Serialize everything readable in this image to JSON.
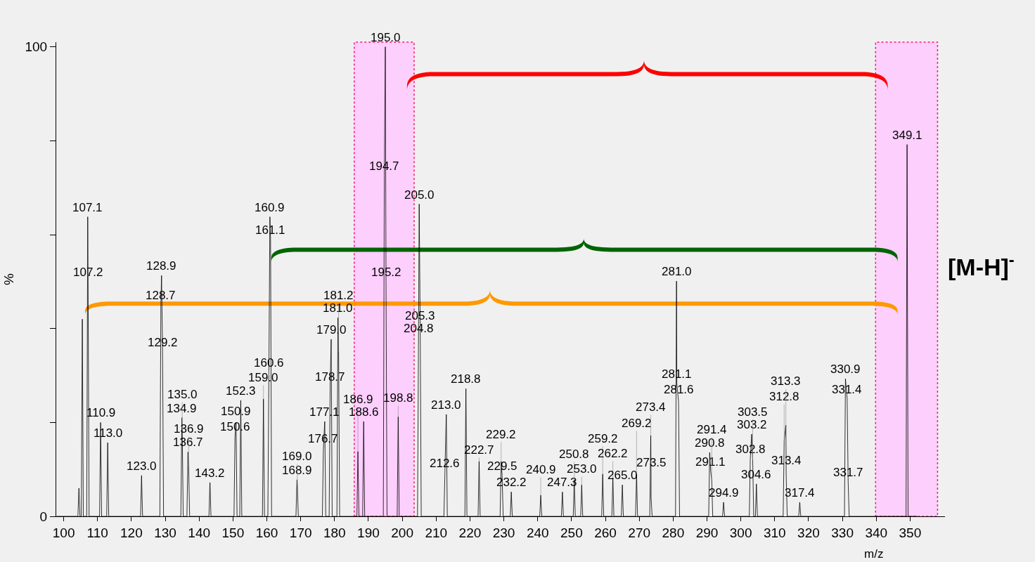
{
  "chart_data": {
    "type": "line",
    "xlabel": "m/z",
    "ylabel": "%",
    "xlim": [
      97.8,
      360.3
    ],
    "ylim": [
      0,
      101
    ],
    "xticks": [
      100,
      110,
      120,
      130,
      140,
      150,
      160,
      170,
      180,
      190,
      200,
      210,
      220,
      230,
      240,
      250,
      260,
      270,
      280,
      290,
      300,
      310,
      320,
      330,
      340,
      350
    ],
    "yticks": [
      0,
      {
        "value": 20,
        "label": null
      },
      {
        "value": 40,
        "label": null
      },
      {
        "value": 60,
        "label": null
      },
      {
        "value": 80,
        "label": null
      },
      100
    ],
    "grid": false,
    "marker": "none",
    "line_style": "solid",
    "series": [
      {
        "color": "#000000",
        "x": [
          98,
          104.2,
          104.5,
          104.8,
          105.2,
          105.5,
          105.8,
          106.8,
          107.1,
          107.2,
          107.5,
          110.6,
          110.9,
          111.2,
          112.7,
          113.0,
          113.3,
          122.7,
          123.0,
          123.3,
          128.4,
          128.7,
          128.9,
          129.2,
          129.5,
          134.6,
          134.9,
          135.0,
          135.3,
          136.4,
          136.7,
          136.9,
          137.2,
          142.9,
          143.2,
          143.5,
          150.3,
          150.6,
          150.9,
          151.2,
          152.0,
          152.3,
          152.6,
          158.7,
          159.0,
          159.3,
          160.3,
          160.6,
          160.9,
          161.1,
          161.4,
          168.6,
          168.9,
          169.0,
          169.3,
          176.4,
          176.7,
          177.1,
          177.4,
          178.4,
          178.7,
          179.0,
          179.3,
          180.7,
          181.0,
          181.2,
          181.5,
          186.6,
          186.9,
          187.2,
          188.3,
          188.6,
          188.9,
          194.4,
          194.7,
          195.0,
          195.2,
          195.5,
          198.5,
          198.8,
          199.1,
          204.5,
          204.8,
          205.0,
          205.3,
          205.6,
          212.3,
          212.6,
          213.0,
          213.3,
          218.5,
          218.8,
          219.1,
          222.4,
          222.7,
          223.0,
          228.9,
          229.2,
          229.5,
          229.8,
          231.9,
          232.2,
          232.5,
          240.6,
          240.9,
          241.2,
          247.0,
          247.3,
          247.6,
          250.5,
          250.8,
          251.1,
          252.7,
          253.0,
          253.3,
          258.9,
          259.2,
          259.5,
          261.9,
          262.2,
          262.5,
          264.7,
          265.0,
          265.3,
          268.9,
          269.2,
          269.5,
          273.1,
          273.4,
          273.5,
          273.8,
          280.7,
          281.0,
          281.1,
          281.6,
          281.9,
          290.5,
          290.8,
          291.1,
          291.4,
          291.7,
          294.6,
          294.9,
          295.2,
          302.5,
          302.8,
          303.2,
          303.5,
          303.8,
          304.3,
          304.6,
          304.9,
          312.5,
          312.8,
          313.3,
          313.4,
          313.7,
          317.1,
          317.4,
          317.7,
          330.6,
          330.9,
          331.4,
          331.7,
          332.0,
          348.8,
          349.1,
          349.4,
          352
        ],
        "values": [
          0,
          0,
          6,
          0,
          0,
          42,
          0,
          0,
          63.8,
          50,
          0,
          0,
          20,
          0,
          0,
          15.7,
          0,
          0,
          8.7,
          0,
          0,
          45,
          51.3,
          35,
          0,
          0,
          21,
          18.7,
          0,
          0,
          13.7,
          10.8,
          0,
          0,
          7.2,
          0,
          0,
          17,
          20,
          0,
          0,
          24.7,
          0,
          0,
          25,
          0,
          0,
          30,
          63.8,
          59,
          0,
          0,
          7.8,
          6.7,
          0,
          0,
          14.2,
          20.2,
          0,
          0,
          27.7,
          37.7,
          0,
          0,
          42.3,
          35,
          0,
          0,
          13.8,
          0,
          0,
          20.2,
          0,
          0,
          72.5,
          100,
          50,
          0,
          0,
          21.2,
          0,
          0,
          38,
          66.5,
          40,
          0,
          0,
          9.3,
          21.7,
          0,
          0,
          27.2,
          0,
          0,
          11.7,
          0,
          0,
          11.7,
          8.7,
          0,
          0,
          5.2,
          0,
          0,
          4.5,
          0,
          0,
          5.2,
          0,
          0,
          7.8,
          0,
          0,
          6.7,
          0,
          0,
          9,
          0,
          0,
          8.2,
          0,
          0,
          6.7,
          0,
          0,
          9,
          0,
          0,
          17.2,
          3.9,
          0,
          0,
          50.1,
          28.3,
          24.4,
          0,
          0,
          13.6,
          9.6,
          7.9,
          0,
          0,
          3.0,
          0,
          0,
          12.3,
          17.5,
          12,
          0,
          0,
          6.9,
          0,
          0,
          16.1,
          19.4,
          8.5,
          0,
          0,
          3.0,
          0,
          0,
          29.3,
          25,
          7.3,
          0,
          0,
          79.2,
          0,
          0
        ]
      }
    ],
    "bands": [
      {
        "axis": "x",
        "from": 185.8,
        "to": 203.5,
        "color": "#ffccff"
      },
      {
        "axis": "x",
        "from": 339.8,
        "to": 358.1,
        "color": "#ffccff"
      }
    ],
    "annotations": [
      "[M-H]$^{-}$",
      {
        "text": "107.1",
        "x": 107.1,
        "y": 63.8
      },
      {
        "text": "107.2",
        "x": 107.2,
        "y": 50
      },
      {
        "text": "110.9",
        "x": 110.9,
        "y": 20
      },
      {
        "text": "113.0",
        "x": 113.0,
        "y": 15.7
      },
      {
        "text": "123.0",
        "x": 123.0,
        "y": 8.7
      },
      {
        "text": "128.7",
        "x": 128.7,
        "y": 45
      },
      {
        "text": "128.9",
        "x": 128.9,
        "y": 51.3
      },
      {
        "text": "129.2",
        "x": 129.2,
        "y": 35
      },
      {
        "text": "134.9",
        "x": 134.9,
        "y": 21
      },
      {
        "text": "135.0",
        "x": 135.0,
        "y": 18.7
      },
      {
        "text": "136.7",
        "x": 136.7,
        "y": 13.7
      },
      {
        "text": "136.9",
        "x": 136.9,
        "y": 10.8
      },
      {
        "text": "143.2",
        "x": 143.2,
        "y": 7.2
      },
      {
        "text": "150.6",
        "x": 150.6,
        "y": 17
      },
      {
        "text": "150.9",
        "x": 150.9,
        "y": 20
      },
      {
        "text": "152.3",
        "x": 152.3,
        "y": 24.7
      },
      {
        "text": "159.0",
        "x": 159.0,
        "y": 25
      },
      {
        "text": "160.6",
        "x": 160.6,
        "y": 30
      },
      {
        "text": "160.9",
        "x": 160.9,
        "y": 63.8
      },
      {
        "text": "161.1",
        "x": 161.1,
        "y": 59
      },
      {
        "text": "168.9",
        "x": 168.9,
        "y": 7.8
      },
      {
        "text": "169.0",
        "x": 169.0,
        "y": 6.7
      },
      {
        "text": "176.7",
        "x": 176.7,
        "y": 14.2
      },
      {
        "text": "177.1",
        "x": 177.1,
        "y": 20.2
      },
      {
        "text": "178.7",
        "x": 178.7,
        "y": 27.7
      },
      {
        "text": "179.0",
        "x": 179.0,
        "y": 37.7
      },
      {
        "text": "181.0",
        "x": 181.0,
        "y": 42.3
      },
      {
        "text": "181.2",
        "x": 181.2,
        "y": 35
      },
      {
        "text": "186.9",
        "x": 186.9,
        "y": 13.8
      },
      {
        "text": "188.6",
        "x": 188.6,
        "y": 20.2
      },
      {
        "text": "194.7",
        "x": 194.7,
        "y": 72.5
      },
      {
        "text": "195.0",
        "x": 195.0,
        "y": 100
      },
      {
        "text": "195.2",
        "x": 195.2,
        "y": 50
      },
      {
        "text": "198.8",
        "x": 198.8,
        "y": 21.2
      },
      {
        "text": "204.8",
        "x": 204.8,
        "y": 38
      },
      {
        "text": "205.0",
        "x": 205.0,
        "y": 66.5
      },
      {
        "text": "205.3",
        "x": 205.3,
        "y": 40
      },
      {
        "text": "212.6",
        "x": 212.6,
        "y": 9.3
      },
      {
        "text": "213.0",
        "x": 213.0,
        "y": 21.7
      },
      {
        "text": "218.8",
        "x": 218.8,
        "y": 27.2
      },
      {
        "text": "222.7",
        "x": 222.7,
        "y": 11.7
      },
      {
        "text": "229.2",
        "x": 229.2,
        "y": 11.7
      },
      {
        "text": "229.5",
        "x": 229.5,
        "y": 8.7
      },
      {
        "text": "232.2",
        "x": 232.2,
        "y": 5.2
      },
      {
        "text": "240.9",
        "x": 240.9,
        "y": 4.5
      },
      {
        "text": "247.3",
        "x": 247.3,
        "y": 5.2
      },
      {
        "text": "250.8",
        "x": 250.8,
        "y": 7.8
      },
      {
        "text": "253.0",
        "x": 253.0,
        "y": 6.7
      },
      {
        "text": "259.2",
        "x": 259.2,
        "y": 9
      },
      {
        "text": "262.2",
        "x": 262.2,
        "y": 8.2
      },
      {
        "text": "265.0",
        "x": 265.0,
        "y": 6.7
      },
      {
        "text": "269.2",
        "x": 269.2,
        "y": 9
      },
      {
        "text": "273.4",
        "x": 273.4,
        "y": 17.2
      },
      {
        "text": "273.5",
        "x": 273.5,
        "y": 3.9
      },
      {
        "text": "281.0",
        "x": 281.0,
        "y": 50.1
      },
      {
        "text": "281.1",
        "x": 281.1,
        "y": 28.3
      },
      {
        "text": "281.6",
        "x": 281.6,
        "y": 24.4
      },
      {
        "text": "290.8",
        "x": 290.8,
        "y": 13.6
      },
      {
        "text": "291.1",
        "x": 291.1,
        "y": 9.6
      },
      {
        "text": "291.4",
        "x": 291.4,
        "y": 7.9
      },
      {
        "text": "294.9",
        "x": 294.9,
        "y": 3.0
      },
      {
        "text": "302.8",
        "x": 302.8,
        "y": 12.3
      },
      {
        "text": "303.2",
        "x": 303.2,
        "y": 17.5
      },
      {
        "text": "303.5",
        "x": 303.5,
        "y": 12
      },
      {
        "text": "304.6",
        "x": 304.6,
        "y": 6.9
      },
      {
        "text": "312.8",
        "x": 312.8,
        "y": 16.1
      },
      {
        "text": "313.3",
        "x": 313.3,
        "y": 19.4
      },
      {
        "text": "313.4",
        "x": 313.4,
        "y": 8.5
      },
      {
        "text": "317.4",
        "x": 317.4,
        "y": 3.0
      },
      {
        "text": "330.9",
        "x": 330.9,
        "y": 29.3
      },
      {
        "text": "331.4",
        "x": 331.4,
        "y": 25
      },
      {
        "text": "331.7",
        "x": 331.7,
        "y": 7.3
      },
      {
        "text": "349.1",
        "x": 349.1,
        "y": 79.2
      }
    ]
  }
}
